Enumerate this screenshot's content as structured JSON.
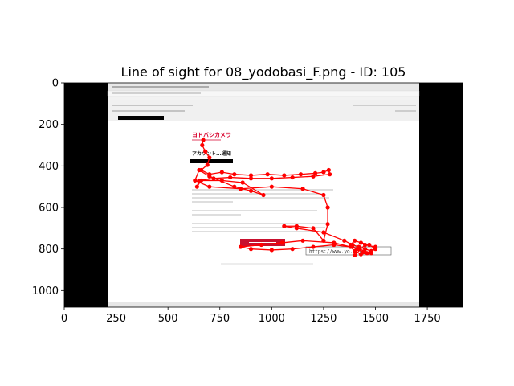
{
  "chart_data": {
    "type": "scatter",
    "title": "Line of sight for 08_yodobasi_F.png - ID: 105",
    "xlim": [
      0,
      1920
    ],
    "ylim": [
      1080,
      0
    ],
    "x_ticks": [
      0,
      250,
      500,
      750,
      1000,
      1250,
      1500,
      1750
    ],
    "y_ticks": [
      0,
      200,
      400,
      600,
      800,
      1000
    ],
    "line_color": "#ff0000",
    "point_color": "#ff0000",
    "background_image": {
      "description_text": {
        "logo": "ヨドバシカメラ",
        "heading": "アカウント...通知",
        "url_box": "https://www.yo...jp/"
      }
    },
    "gaze_points": [
      {
        "x": 670,
        "y": 275
      },
      {
        "x": 665,
        "y": 300
      },
      {
        "x": 680,
        "y": 330
      },
      {
        "x": 700,
        "y": 360
      },
      {
        "x": 690,
        "y": 395
      },
      {
        "x": 660,
        "y": 420
      },
      {
        "x": 700,
        "y": 440
      },
      {
        "x": 760,
        "y": 430
      },
      {
        "x": 820,
        "y": 440
      },
      {
        "x": 900,
        "y": 445
      },
      {
        "x": 980,
        "y": 440
      },
      {
        "x": 1060,
        "y": 445
      },
      {
        "x": 1140,
        "y": 440
      },
      {
        "x": 1210,
        "y": 435
      },
      {
        "x": 1250,
        "y": 430
      },
      {
        "x": 1275,
        "y": 420
      },
      {
        "x": 1280,
        "y": 440
      },
      {
        "x": 1200,
        "y": 450
      },
      {
        "x": 1100,
        "y": 455
      },
      {
        "x": 1000,
        "y": 460
      },
      {
        "x": 900,
        "y": 460
      },
      {
        "x": 800,
        "y": 455
      },
      {
        "x": 720,
        "y": 460
      },
      {
        "x": 650,
        "y": 470
      },
      {
        "x": 640,
        "y": 500
      },
      {
        "x": 660,
        "y": 470
      },
      {
        "x": 760,
        "y": 470
      },
      {
        "x": 860,
        "y": 480
      },
      {
        "x": 960,
        "y": 540
      },
      {
        "x": 900,
        "y": 520
      },
      {
        "x": 820,
        "y": 500
      },
      {
        "x": 700,
        "y": 450
      },
      {
        "x": 650,
        "y": 420
      },
      {
        "x": 630,
        "y": 470
      },
      {
        "x": 700,
        "y": 500
      },
      {
        "x": 850,
        "y": 510
      },
      {
        "x": 1000,
        "y": 500
      },
      {
        "x": 1150,
        "y": 510
      },
      {
        "x": 1250,
        "y": 540
      },
      {
        "x": 1270,
        "y": 600
      },
      {
        "x": 1270,
        "y": 680
      },
      {
        "x": 1250,
        "y": 760
      },
      {
        "x": 1200,
        "y": 700
      },
      {
        "x": 1120,
        "y": 690
      },
      {
        "x": 1060,
        "y": 690
      },
      {
        "x": 1120,
        "y": 700
      },
      {
        "x": 1250,
        "y": 720
      },
      {
        "x": 1350,
        "y": 760
      },
      {
        "x": 1390,
        "y": 780
      },
      {
        "x": 1420,
        "y": 790
      },
      {
        "x": 1450,
        "y": 800
      },
      {
        "x": 1480,
        "y": 810
      },
      {
        "x": 1500,
        "y": 800
      },
      {
        "x": 1470,
        "y": 780
      },
      {
        "x": 1430,
        "y": 770
      },
      {
        "x": 1400,
        "y": 760
      },
      {
        "x": 1380,
        "y": 780
      },
      {
        "x": 1410,
        "y": 800
      },
      {
        "x": 1440,
        "y": 815
      },
      {
        "x": 1460,
        "y": 820
      },
      {
        "x": 1430,
        "y": 825
      },
      {
        "x": 1400,
        "y": 810
      },
      {
        "x": 1380,
        "y": 790
      },
      {
        "x": 1300,
        "y": 780
      },
      {
        "x": 1200,
        "y": 790
      },
      {
        "x": 1100,
        "y": 800
      },
      {
        "x": 1000,
        "y": 805
      },
      {
        "x": 900,
        "y": 800
      },
      {
        "x": 850,
        "y": 790
      },
      {
        "x": 950,
        "y": 780
      },
      {
        "x": 1050,
        "y": 770
      },
      {
        "x": 1150,
        "y": 760
      },
      {
        "x": 1300,
        "y": 770
      },
      {
        "x": 1420,
        "y": 800
      },
      {
        "x": 1480,
        "y": 820
      },
      {
        "x": 1500,
        "y": 790
      },
      {
        "x": 1450,
        "y": 780
      },
      {
        "x": 1400,
        "y": 830
      }
    ]
  }
}
